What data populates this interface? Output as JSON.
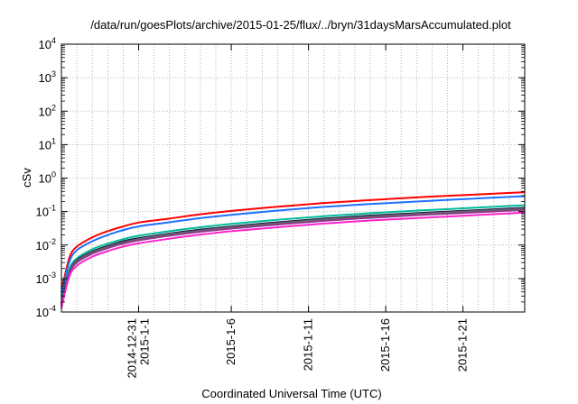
{
  "chart_data": {
    "type": "line",
    "title": "/data/run/goesPlots/archive/2015-01-25/flux/../bryn/31daysMarsAccumulated.plot",
    "xlabel": "Coordinated Universal Time (UTC)",
    "ylabel": "cSv",
    "yscale": "log",
    "ylim": [
      0.0001,
      10000
    ],
    "xlim": [
      "2014-12-26",
      "2015-01-25"
    ],
    "grid": true,
    "y_ticks": [
      {
        "value": 0.0001,
        "base": "10",
        "exp": "-4"
      },
      {
        "value": 0.001,
        "base": "10",
        "exp": "-3"
      },
      {
        "value": 0.01,
        "base": "10",
        "exp": "-2"
      },
      {
        "value": 0.1,
        "base": "10",
        "exp": "-1"
      },
      {
        "value": 1,
        "base": "10",
        "exp": "0"
      },
      {
        "value": 10,
        "base": "10",
        "exp": "1"
      },
      {
        "value": 100,
        "base": "10",
        "exp": "2"
      },
      {
        "value": 1000,
        "base": "10",
        "exp": "3"
      },
      {
        "value": 10000,
        "base": "10",
        "exp": "4"
      }
    ],
    "x_ticks": [
      {
        "date": "2014-12-31",
        "labels": [
          "2014-12-31",
          "2015-1-1"
        ]
      },
      {
        "date": "2015-01-06",
        "labels": [
          "2015-1-6"
        ]
      },
      {
        "date": "2015-01-11",
        "labels": [
          "2015-1-11"
        ]
      },
      {
        "date": "2015-01-16",
        "labels": [
          "2015-1-16"
        ]
      },
      {
        "date": "2015-01-21",
        "labels": [
          "2015-1-21"
        ]
      }
    ],
    "x": [
      "2014-12-26",
      "2014-12-26T12:00",
      "2014-12-27",
      "2014-12-28",
      "2014-12-29",
      "2014-12-30",
      "2014-12-31",
      "2015-01-02",
      "2015-01-04",
      "2015-01-06",
      "2015-01-09",
      "2015-01-12",
      "2015-01-15",
      "2015-01-18",
      "2015-01-21",
      "2015-01-25"
    ],
    "series": [
      {
        "color": "#ff0000",
        "values": [
          0.0004,
          0.004,
          0.009,
          0.017,
          0.026,
          0.036,
          0.047,
          0.062,
          0.083,
          0.105,
          0.14,
          0.18,
          0.22,
          0.265,
          0.31,
          0.38
        ]
      },
      {
        "color": "#1f6fff",
        "values": [
          0.0003,
          0.003,
          0.007,
          0.013,
          0.02,
          0.028,
          0.036,
          0.048,
          0.064,
          0.08,
          0.107,
          0.138,
          0.168,
          0.2,
          0.235,
          0.29
        ]
      },
      {
        "color": "#00bb99",
        "values": [
          0.0002,
          0.0018,
          0.004,
          0.0075,
          0.011,
          0.015,
          0.019,
          0.026,
          0.034,
          0.043,
          0.057,
          0.073,
          0.09,
          0.107,
          0.125,
          0.155
        ]
      },
      {
        "color": "#1a1a4a",
        "values": [
          0.00018,
          0.0015,
          0.0035,
          0.0064,
          0.0094,
          0.013,
          0.016,
          0.022,
          0.029,
          0.036,
          0.048,
          0.062,
          0.076,
          0.09,
          0.105,
          0.13
        ]
      },
      {
        "color": "#666666",
        "values": [
          0.00017,
          0.0014,
          0.0033,
          0.006,
          0.0088,
          0.012,
          0.015,
          0.021,
          0.027,
          0.034,
          0.045,
          0.058,
          0.071,
          0.085,
          0.099,
          0.122
        ]
      },
      {
        "color": "#8b3a8b",
        "values": [
          0.00016,
          0.0013,
          0.003,
          0.0055,
          0.0081,
          0.011,
          0.0138,
          0.019,
          0.025,
          0.031,
          0.041,
          0.053,
          0.065,
          0.078,
          0.091,
          0.112
        ]
      },
      {
        "color": "#ff22cc",
        "values": [
          0.00013,
          0.0011,
          0.0024,
          0.0045,
          0.0066,
          0.009,
          0.0113,
          0.0155,
          0.0205,
          0.026,
          0.034,
          0.044,
          0.054,
          0.064,
          0.075,
          0.093
        ]
      }
    ]
  }
}
